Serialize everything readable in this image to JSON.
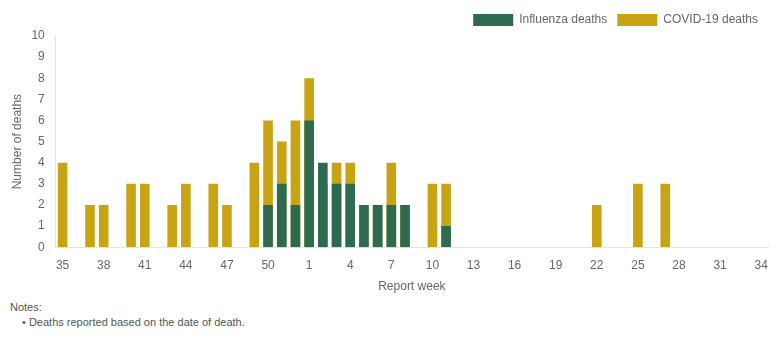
{
  "chart_data": {
    "type": "bar",
    "categories": [
      "35",
      null,
      null,
      "38",
      null,
      null,
      "41",
      null,
      null,
      "44",
      null,
      null,
      "47",
      null,
      null,
      "50",
      null,
      null,
      "1",
      null,
      null,
      "4",
      null,
      null,
      "7",
      null,
      null,
      "10",
      null,
      null,
      "13",
      null,
      null,
      "16",
      null,
      null,
      "19",
      null,
      null,
      "22",
      null,
      null,
      "25",
      null,
      null,
      "28",
      null,
      null,
      "31",
      null,
      null,
      "34"
    ],
    "series": [
      {
        "name": "COVID-19 deaths",
        "color": "#C8A415",
        "values": [
          4,
          0,
          2,
          2,
          0,
          3,
          3,
          0,
          2,
          3,
          0,
          3,
          2,
          0,
          4,
          6,
          5,
          6,
          8,
          3,
          4,
          4,
          2,
          2,
          4,
          2,
          0,
          3,
          3,
          0,
          0,
          0,
          0,
          0,
          0,
          0,
          0,
          0,
          0,
          2,
          0,
          0,
          3,
          0,
          3,
          0,
          0,
          0,
          0,
          0,
          0,
          0
        ]
      },
      {
        "name": "Influenza deaths",
        "color": "#2D6A4F",
        "values": [
          0,
          0,
          0,
          0,
          0,
          0,
          0,
          0,
          0,
          0,
          0,
          0,
          0,
          0,
          0,
          2,
          3,
          2,
          6,
          4,
          3,
          3,
          2,
          2,
          2,
          2,
          0,
          0,
          1,
          0,
          0,
          0,
          0,
          0,
          0,
          0,
          0,
          0,
          0,
          0,
          0,
          0,
          0,
          0,
          0,
          0,
          0,
          0,
          0,
          0,
          0,
          0
        ]
      }
    ],
    "xlabel": "Report week",
    "ylabel": "Number of deaths",
    "ylim": [
      0,
      10
    ],
    "yticks": [
      0,
      1,
      2,
      3,
      4,
      5,
      6,
      7,
      8,
      9,
      10
    ],
    "grid": false,
    "legend": "upper right",
    "annotations": [
      "Notes:",
      "•  Deaths reported based on the date of death."
    ]
  }
}
